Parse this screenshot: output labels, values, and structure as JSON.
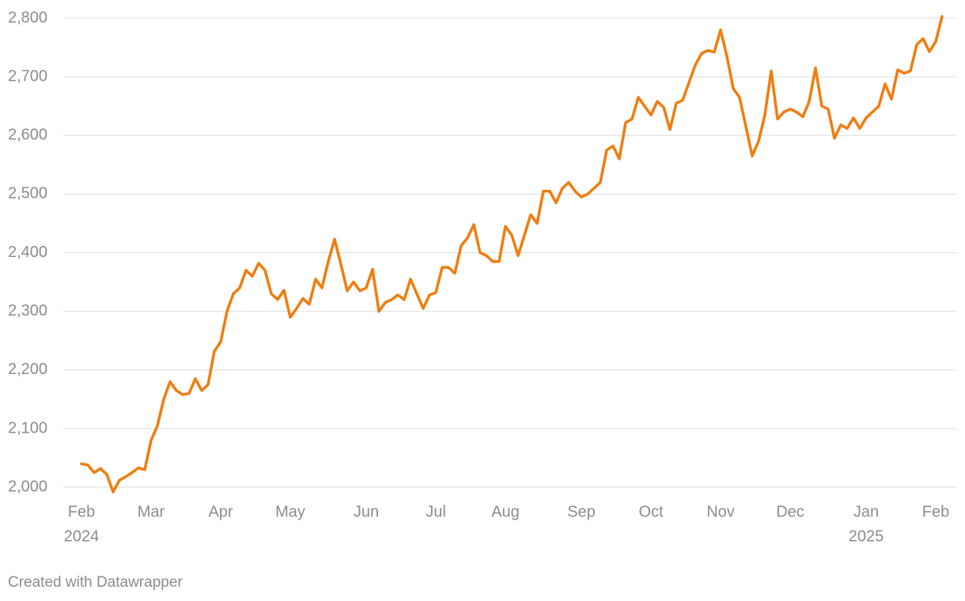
{
  "chart_data": {
    "type": "line",
    "categories": [
      "Feb",
      null,
      null,
      null,
      null,
      null,
      null,
      null,
      null,
      null,
      null,
      "Mar",
      null,
      null,
      null,
      null,
      null,
      null,
      null,
      null,
      null,
      null,
      "Apr",
      null,
      null,
      null,
      null,
      null,
      null,
      null,
      null,
      null,
      null,
      "May",
      null,
      null,
      null,
      null,
      null,
      null,
      null,
      null,
      null,
      null,
      null,
      "Jun",
      null,
      null,
      null,
      null,
      null,
      null,
      null,
      null,
      null,
      null,
      "Jul",
      null,
      null,
      null,
      null,
      null,
      null,
      null,
      null,
      null,
      null,
      "Aug",
      null,
      null,
      null,
      null,
      null,
      null,
      null,
      null,
      null,
      null,
      null,
      "Sep",
      null,
      null,
      null,
      null,
      null,
      null,
      null,
      null,
      null,
      null,
      "Oct",
      null,
      null,
      null,
      null,
      null,
      null,
      null,
      null,
      null,
      null,
      "Nov",
      null,
      null,
      null,
      null,
      null,
      null,
      null,
      null,
      null,
      null,
      "Dec",
      null,
      null,
      null,
      null,
      null,
      null,
      null,
      null,
      null,
      null,
      null,
      "Jan",
      null,
      null,
      null,
      null,
      null,
      null,
      null,
      null,
      null,
      null,
      "Feb",
      null
    ],
    "category_years": [
      "2024",
      null,
      null,
      null,
      null,
      null,
      null,
      null,
      null,
      null,
      null,
      null,
      null,
      null,
      null,
      null,
      null,
      null,
      null,
      null,
      null,
      null,
      null,
      null,
      null,
      null,
      null,
      null,
      null,
      null,
      null,
      null,
      null,
      null,
      null,
      null,
      null,
      null,
      null,
      null,
      null,
      null,
      null,
      null,
      null,
      null,
      null,
      null,
      null,
      null,
      null,
      null,
      null,
      null,
      null,
      null,
      null,
      null,
      null,
      null,
      null,
      null,
      null,
      null,
      null,
      null,
      null,
      null,
      null,
      null,
      null,
      null,
      null,
      null,
      null,
      null,
      null,
      null,
      null,
      null,
      null,
      null,
      null,
      null,
      null,
      null,
      null,
      null,
      null,
      null,
      null,
      null,
      null,
      null,
      null,
      null,
      null,
      null,
      null,
      null,
      null,
      null,
      null,
      null,
      null,
      null,
      null,
      null,
      null,
      null,
      null,
      null,
      null,
      null,
      null,
      null,
      null,
      null,
      null,
      null,
      null,
      null,
      null,
      null,
      "2025",
      null,
      null,
      null,
      null,
      null,
      null,
      null,
      null,
      null,
      null,
      null,
      null
    ],
    "values": [
      2040,
      2038,
      2025,
      2032,
      2022,
      1992,
      2012,
      2018,
      2025,
      2033,
      2030,
      2080,
      2105,
      2150,
      2180,
      2165,
      2158,
      2160,
      2185,
      2165,
      2175,
      2232,
      2248,
      2300,
      2330,
      2340,
      2370,
      2360,
      2382,
      2370,
      2330,
      2320,
      2336,
      2290,
      2305,
      2322,
      2312,
      2355,
      2340,
      2385,
      2423,
      2380,
      2335,
      2350,
      2335,
      2340,
      2372,
      2300,
      2315,
      2320,
      2328,
      2320,
      2355,
      2330,
      2305,
      2328,
      2332,
      2375,
      2375,
      2365,
      2412,
      2425,
      2448,
      2400,
      2395,
      2385,
      2385,
      2445,
      2430,
      2395,
      2430,
      2465,
      2450,
      2505,
      2505,
      2485,
      2510,
      2520,
      2505,
      2495,
      2500,
      2510,
      2520,
      2575,
      2582,
      2560,
      2622,
      2628,
      2665,
      2650,
      2635,
      2658,
      2648,
      2610,
      2655,
      2660,
      2690,
      2720,
      2740,
      2745,
      2742,
      2780,
      2735,
      2680,
      2665,
      2615,
      2565,
      2590,
      2635,
      2710,
      2628,
      2640,
      2645,
      2640,
      2632,
      2658,
      2715,
      2650,
      2645,
      2595,
      2618,
      2612,
      2630,
      2612,
      2630,
      2640,
      2650,
      2688,
      2662,
      2712,
      2706,
      2710,
      2755,
      2765,
      2743,
      2760,
      2803
    ],
    "color": "#ef7d0f",
    "ylim": [
      1980,
      2800
    ],
    "yticks": [
      {
        "value": 2000,
        "label": "2,000"
      },
      {
        "value": 2100,
        "label": "2,100"
      },
      {
        "value": 2200,
        "label": "2,200"
      },
      {
        "value": 2300,
        "label": "2,300"
      },
      {
        "value": 2400,
        "label": "2,400"
      },
      {
        "value": 2500,
        "label": "2,500"
      },
      {
        "value": 2600,
        "label": "2,600"
      },
      {
        "value": 2700,
        "label": "2,700"
      },
      {
        "value": 2800,
        "label": "2,800"
      }
    ],
    "grid": true,
    "footer": "Created with Datawrapper"
  }
}
